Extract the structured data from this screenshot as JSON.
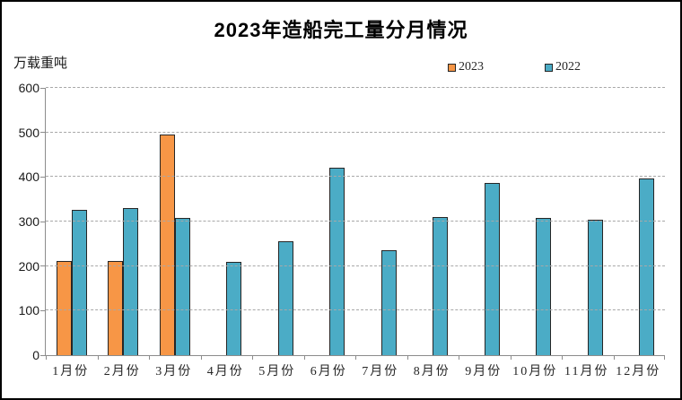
{
  "chart_data": {
    "type": "bar",
    "title": "2023年造船完工量分月情况",
    "unit_label": "万载重吨",
    "categories": [
      "1月份",
      "2月份",
      "3月份",
      "4月份",
      "5月份",
      "6月份",
      "7月份",
      "8月份",
      "9月份",
      "10月份",
      "11月份",
      "12月份"
    ],
    "series": [
      {
        "name": "2023",
        "color": "#F79646",
        "values": [
          211,
          211,
          495,
          null,
          null,
          null,
          null,
          null,
          null,
          null,
          null,
          null
        ]
      },
      {
        "name": "2022",
        "color": "#4BACC6",
        "values": [
          327,
          330,
          308,
          209,
          256,
          421,
          235,
          311,
          387,
          309,
          304,
          396
        ]
      }
    ],
    "ylim": [
      0,
      600
    ],
    "ytick_interval": 100,
    "grid": true,
    "legend_position": "top-right"
  }
}
